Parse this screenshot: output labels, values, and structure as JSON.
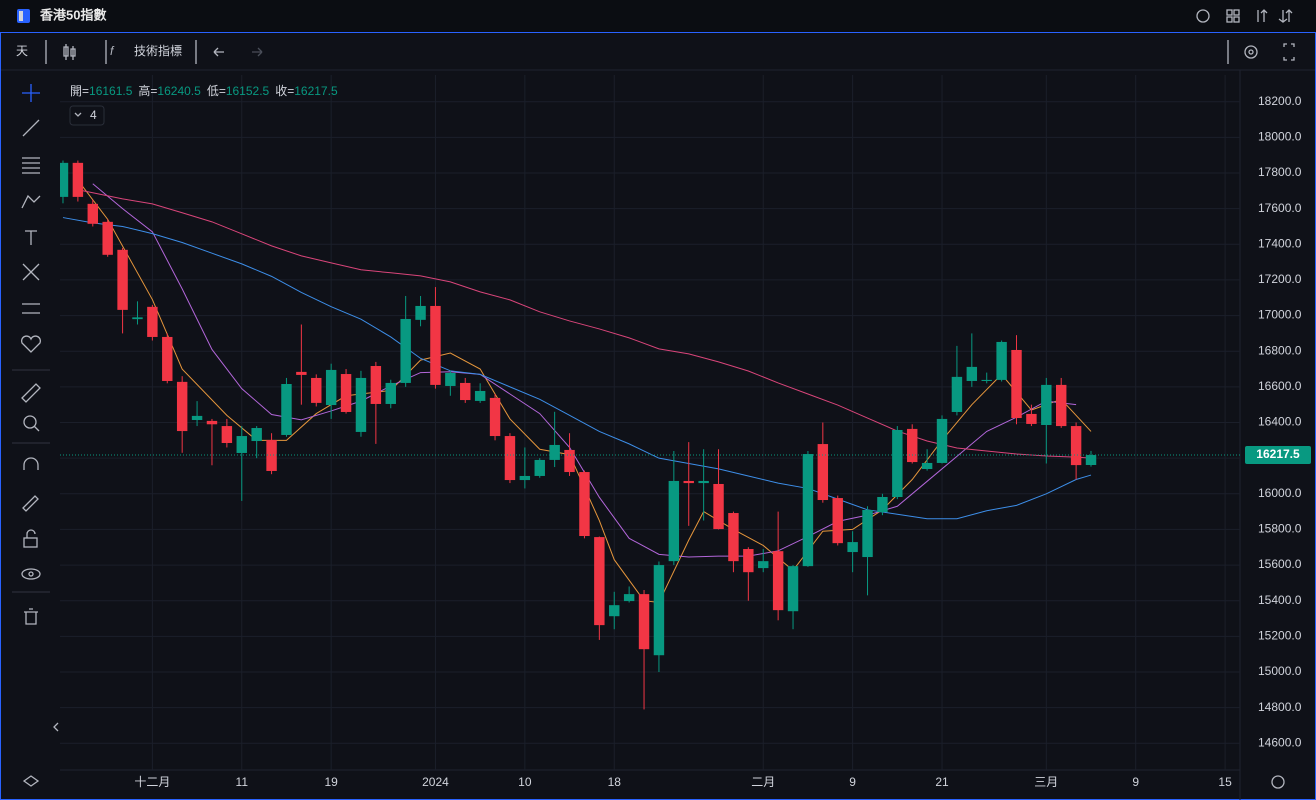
{
  "header": {
    "title": "香港50指數"
  },
  "toolbar": {
    "interval": "天",
    "indicators": "技術指標"
  },
  "chart_data": {
    "type": "candlestick",
    "ohlc_labels": [
      "開=",
      "高=",
      "低=",
      "收="
    ],
    "indicator_count": 4,
    "open": [
      17666,
      17857,
      17627,
      17526,
      17369,
      16980,
      17049,
      16880,
      16628,
      16414,
      16409,
      16380,
      16229,
      16296,
      16302,
      16330,
      16684,
      16650,
      16498,
      16672,
      16347,
      16717,
      16504,
      16622,
      16976,
      17054,
      16605,
      16622,
      16521,
      16538,
      16324,
      16077,
      16100,
      16190,
      16246,
      16122,
      15757,
      15313,
      15398,
      15437,
      15094,
      15622,
      16072,
      16060,
      16055,
      15892,
      15690,
      15583,
      15678,
      15341,
      15594,
      16279,
      15976,
      15673,
      15645,
      15897,
      15982,
      16364,
      16139,
      16173,
      16459,
      16633,
      16633,
      16639,
      16807,
      16448,
      16386,
      16611,
      16380,
      16161.5
    ],
    "high": [
      17870,
      17870,
      17650,
      17540,
      17380,
      17080,
      17060,
      16900,
      16660,
      16520,
      16420,
      16420,
      16380,
      16380,
      16340,
      16650,
      16950,
      16670,
      16730,
      16700,
      16690,
      16740,
      16640,
      17110,
      17110,
      17160,
      16690,
      16650,
      16620,
      16560,
      16340,
      16260,
      16200,
      16460,
      16340,
      16130,
      15760,
      15450,
      15480,
      15460,
      15620,
      16240,
      16290,
      16250,
      16250,
      15900,
      15700,
      15690,
      15900,
      15600,
      16240,
      16400,
      15990,
      15790,
      15930,
      16000,
      16380,
      16390,
      16250,
      16440,
      16830,
      16900,
      16680,
      16860,
      16890,
      16500,
      16650,
      16650,
      16400,
      16240.5
    ],
    "low": [
      17630,
      17640,
      17500,
      17330,
      16900,
      16950,
      16860,
      16620,
      16230,
      16380,
      16160,
      16260,
      15960,
      16200,
      16110,
      16320,
      16500,
      16490,
      16420,
      16450,
      16320,
      16280,
      16480,
      16600,
      16940,
      16590,
      16550,
      16510,
      16510,
      16300,
      16060,
      16030,
      16090,
      16150,
      16100,
      15750,
      15180,
      15240,
      15390,
      14790,
      15000,
      15600,
      15820,
      15850,
      15800,
      15560,
      15400,
      15560,
      15290,
      15240,
      15590,
      15950,
      15710,
      15560,
      15430,
      15880,
      15970,
      16170,
      16130,
      16170,
      16440,
      16600,
      16620,
      16630,
      16390,
      16380,
      16170,
      16370,
      16080,
      16152.5
    ],
    "close": [
      17857,
      17666,
      17515,
      17341,
      17032,
      16990,
      16880,
      16633,
      16352,
      16437,
      16390,
      16285,
      16324,
      16369,
      16128,
      16616,
      16667,
      16510,
      16695,
      16459,
      16650,
      16504,
      16622,
      16981,
      17054,
      16611,
      16678,
      16526,
      16577,
      16324,
      16077,
      16100,
      16190,
      16274,
      16122,
      15763,
      15263,
      15375,
      15437,
      15128,
      15600,
      16072,
      16060,
      16072,
      15802,
      15622,
      15560,
      15622,
      15347,
      15594,
      16223,
      15965,
      15723,
      15729,
      15909,
      15982,
      16358,
      16178,
      16173,
      16420,
      16656,
      16712,
      16639,
      16852,
      16425,
      16392,
      16611,
      16380,
      16161,
      16217.5
    ],
    "up_color": "#089981",
    "down_color": "#f23645",
    "moving_averages": [
      {
        "color": "#e5963c",
        "x": [
          1,
          3,
          6,
          8,
          11,
          13,
          15,
          17,
          19,
          22,
          24,
          26,
          28,
          30,
          32,
          34,
          36,
          37,
          39,
          40,
          42,
          43,
          45,
          47,
          49,
          51,
          53,
          55,
          57,
          59,
          61,
          63,
          65,
          67,
          69
        ],
        "values": [
          17760,
          17540,
          17090,
          16700,
          16440,
          16300,
          16300,
          16450,
          16550,
          16580,
          16750,
          16790,
          16700,
          16420,
          16250,
          16220,
          15850,
          15630,
          15400,
          15390,
          15740,
          15900,
          15800,
          15710,
          15570,
          15790,
          15800,
          15910,
          16080,
          16300,
          16500,
          16670,
          16470,
          16530,
          16350
        ]
      },
      {
        "color": "#b266d9",
        "x": [
          2,
          4,
          6,
          8,
          10,
          12,
          14,
          16,
          18,
          20,
          22,
          24,
          26,
          28,
          30,
          32,
          34,
          36,
          38,
          40,
          42,
          44,
          46,
          48,
          50,
          52,
          54,
          56,
          58,
          60,
          62,
          64,
          66,
          68
        ],
        "values": [
          17740,
          17600,
          17470,
          17150,
          16810,
          16590,
          16445,
          16415,
          16465,
          16520,
          16605,
          16680,
          16685,
          16670,
          16560,
          16450,
          16260,
          15980,
          15750,
          15660,
          15645,
          15650,
          15650,
          15680,
          15760,
          15845,
          15880,
          15930,
          16070,
          16210,
          16350,
          16430,
          16520,
          16500
        ]
      },
      {
        "color": "#3d8ee8",
        "x": [
          0,
          2,
          4,
          6,
          8,
          10,
          12,
          14,
          16,
          18,
          20,
          22,
          24,
          26,
          28,
          30,
          32,
          34,
          36,
          38,
          40,
          42,
          44,
          46,
          48,
          50,
          52,
          54,
          56,
          58,
          60,
          62,
          64,
          66,
          68,
          69
        ],
        "values": [
          17550,
          17520,
          17500,
          17460,
          17410,
          17350,
          17290,
          17220,
          17130,
          17050,
          16980,
          16880,
          16760,
          16690,
          16670,
          16600,
          16530,
          16440,
          16350,
          16280,
          16200,
          16170,
          16140,
          16100,
          16060,
          16030,
          15970,
          15910,
          15885,
          15860,
          15860,
          15905,
          15935,
          16000,
          16080,
          16105
        ]
      },
      {
        "color": "#d9457a",
        "x": [
          1,
          2,
          4,
          6,
          8,
          10,
          12,
          14,
          16,
          18,
          20,
          22,
          24,
          26,
          28,
          30,
          32,
          34,
          36,
          38,
          40,
          42,
          44,
          46,
          48,
          50,
          52,
          54,
          56,
          58,
          60,
          62,
          64,
          66,
          68,
          69
        ],
        "values": [
          17706,
          17689,
          17655,
          17627,
          17577,
          17526,
          17459,
          17391,
          17335,
          17296,
          17257,
          17240,
          17223,
          17189,
          17133,
          17088,
          17021,
          16970,
          16925,
          16875,
          16813,
          16785,
          16740,
          16689,
          16622,
          16560,
          16498,
          16425,
          16352,
          16296,
          16257,
          16240,
          16223,
          16212,
          16206,
          16200
        ]
      }
    ],
    "xlim": [
      -0.2,
      79
    ],
    "xticks": [
      {
        "value": 6,
        "label": "十二月"
      },
      {
        "value": 12,
        "label": "11"
      },
      {
        "value": 18,
        "label": "19"
      },
      {
        "value": 25,
        "label": "2024"
      },
      {
        "value": 31,
        "label": "10"
      },
      {
        "value": 37,
        "label": "18"
      },
      {
        "value": 47,
        "label": "二月"
      },
      {
        "value": 53,
        "label": "9"
      },
      {
        "value": 59,
        "label": "21"
      },
      {
        "value": 66,
        "label": "三月"
      },
      {
        "value": 72,
        "label": "9"
      },
      {
        "value": 78,
        "label": "15"
      }
    ],
    "ylim": [
      14450,
      18350
    ],
    "yticks": [
      {
        "value": 14600,
        "label": "14600.0"
      },
      {
        "value": 14800,
        "label": "14800.0"
      },
      {
        "value": 15000,
        "label": "15000.0"
      },
      {
        "value": 15200,
        "label": "15200.0"
      },
      {
        "value": 15400,
        "label": "15400.0"
      },
      {
        "value": 15600,
        "label": "15600.0"
      },
      {
        "value": 15800,
        "label": "15800.0"
      },
      {
        "value": 16000,
        "label": "16000.0"
      },
      {
        "value": 16200,
        "label": "16200.0"
      },
      {
        "value": 16400,
        "label": "16400.0"
      },
      {
        "value": 16600,
        "label": "16600.0"
      },
      {
        "value": 16800,
        "label": "16800.0"
      },
      {
        "value": 17000,
        "label": "17000.0"
      },
      {
        "value": 17200,
        "label": "17200.0"
      },
      {
        "value": 17400,
        "label": "17400.0"
      },
      {
        "value": 17600,
        "label": "17600.0"
      },
      {
        "value": 17800,
        "label": "17800.0"
      },
      {
        "value": 18000,
        "label": "18000.0"
      },
      {
        "value": 18200,
        "label": "18200.0"
      }
    ],
    "grid": true
  }
}
